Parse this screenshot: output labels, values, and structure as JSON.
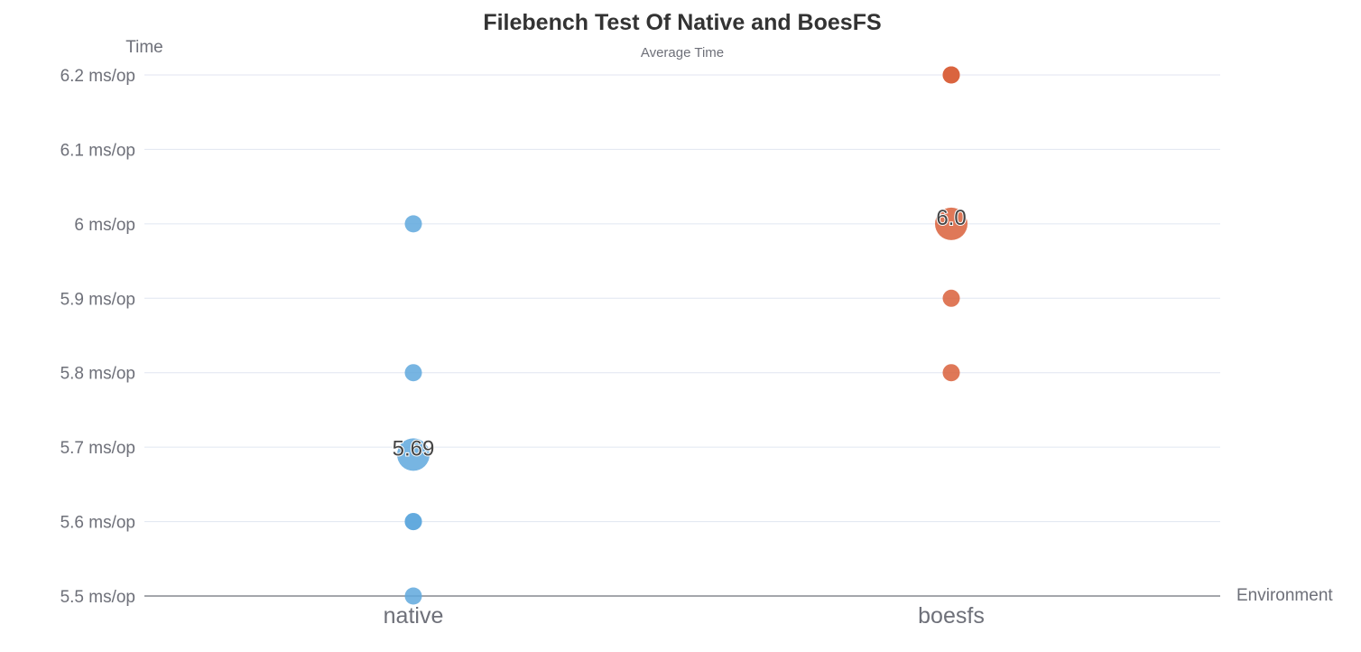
{
  "chart_data": {
    "type": "scatter",
    "title": "Filebench Test Of Native and BoesFS",
    "subtitle": "Average Time",
    "ylabel": "Time",
    "xlabel": "Environment",
    "y_unit": "ms/op",
    "ylim": [
      5.5,
      6.2
    ],
    "yticks": [
      "5.5 ms/op",
      "5.6 ms/op",
      "5.7 ms/op",
      "5.8 ms/op",
      "5.9 ms/op",
      "6 ms/op",
      "6.1 ms/op",
      "6.2 ms/op"
    ],
    "categories": [
      "native",
      "boesfs"
    ],
    "grid": true,
    "series": [
      {
        "color": "#5fa8dd",
        "category": "native",
        "values": [
          6.0,
          5.8,
          5.6,
          5.6,
          5.5
        ],
        "average": 5.69,
        "average_label": "5.69"
      },
      {
        "color": "#d9603b",
        "category": "boesfs",
        "values": [
          6.2,
          6.2,
          5.9,
          5.8
        ],
        "average": 6.0,
        "average_label": "6.0"
      }
    ]
  }
}
